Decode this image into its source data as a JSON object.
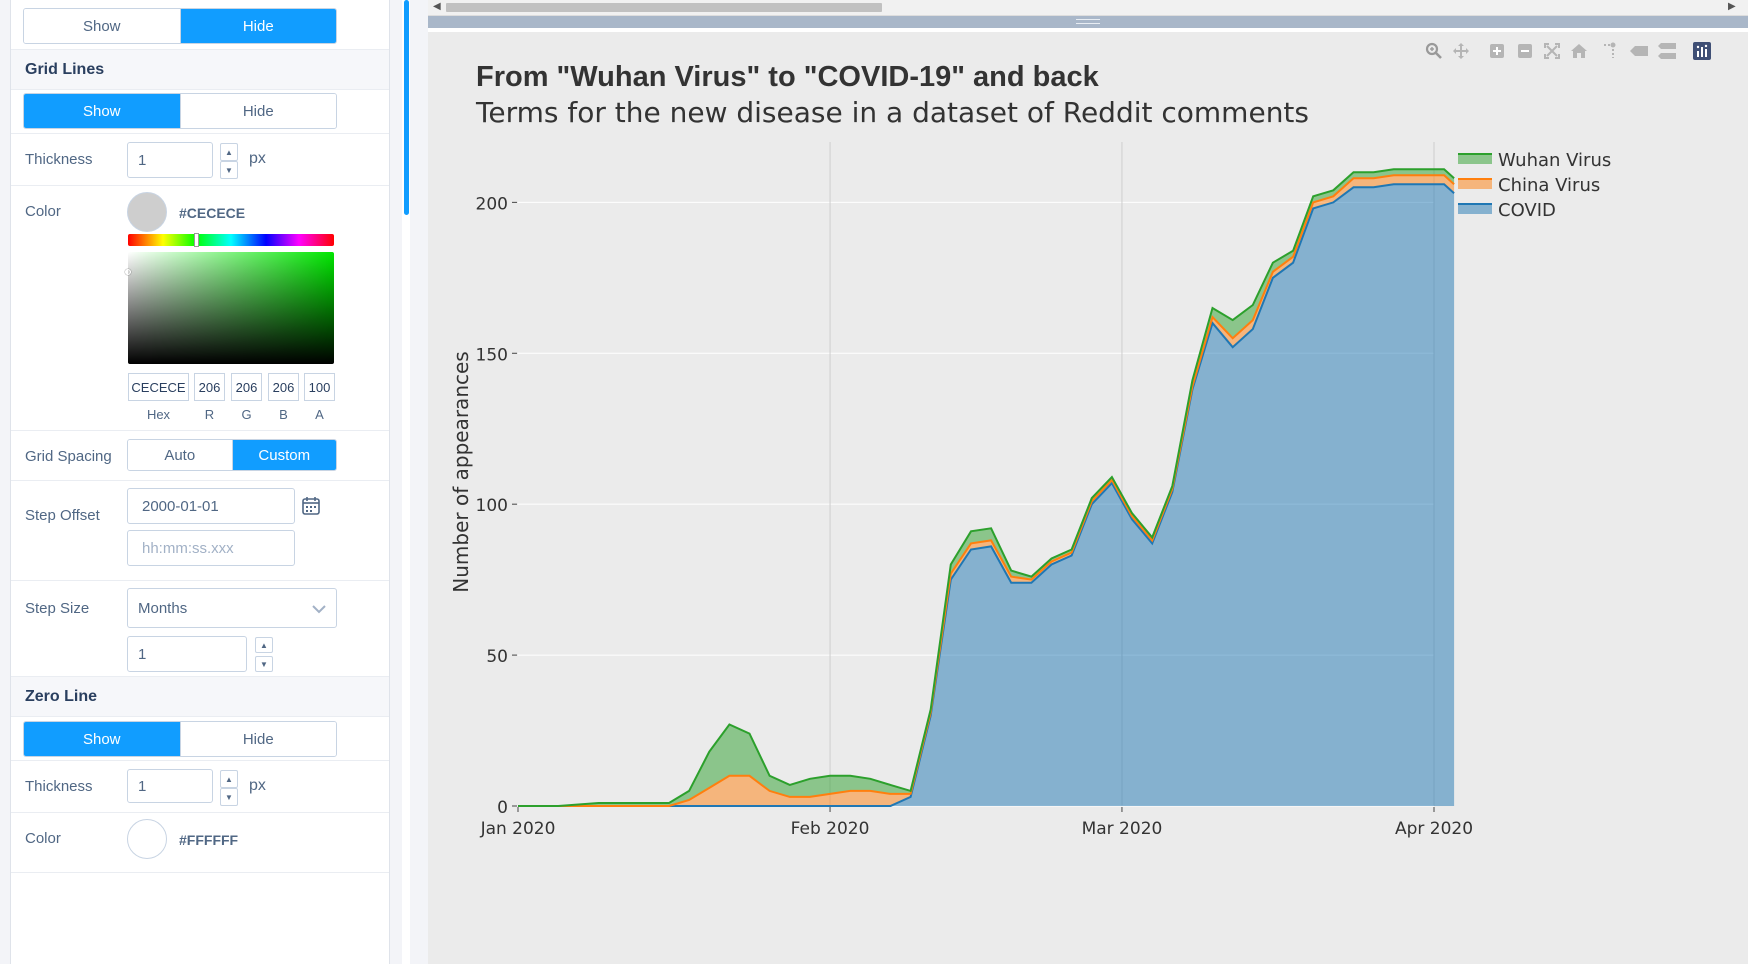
{
  "panel": {
    "top_toggle": {
      "options": [
        "Show",
        "Hide"
      ],
      "selected": 1
    },
    "grid_lines": {
      "title": "Grid Lines",
      "toggle": {
        "options": [
          "Show",
          "Hide"
        ],
        "selected": 0
      },
      "thickness_label": "Thickness",
      "thickness_value": "1",
      "thickness_unit": "px",
      "color_label": "Color",
      "color_hex_text": "#CECECE",
      "color_value": "#cecece",
      "picker": {
        "hex": "CECECE",
        "r": "206",
        "g": "206",
        "b": "206",
        "a": "100",
        "labels": [
          "Hex",
          "R",
          "G",
          "B",
          "A"
        ]
      },
      "grid_spacing_label": "Grid Spacing",
      "grid_spacing": {
        "options": [
          "Auto",
          "Custom"
        ],
        "selected": 1
      },
      "step_offset_label": "Step Offset",
      "step_offset_date": "2000-01-01",
      "step_offset_time_placeholder": "hh:mm:ss.xxx",
      "step_size_label": "Step Size",
      "step_size_unit": "Months",
      "step_size_value": "1"
    },
    "zero_line": {
      "title": "Zero Line",
      "toggle": {
        "options": [
          "Show",
          "Hide"
        ],
        "selected": 0
      },
      "thickness_label": "Thickness",
      "thickness_value": "1",
      "thickness_unit": "px",
      "color_label": "Color",
      "color_hex_text": "#FFFFFF",
      "color_value": "#ffffff"
    }
  },
  "modebar": [
    "zoom-icon",
    "pan-icon",
    "zoom-in-icon",
    "zoom-out-icon",
    "autoscale-icon",
    "reset-axes-icon",
    "spike-lines-icon",
    "hover-closest-icon",
    "hover-compare-icon",
    "plotly-logo-icon"
  ],
  "colors": {
    "accent": "#119dff",
    "plot_bg": "#ebebeb",
    "covid": "#1f77b4",
    "china": "#ff7f0e",
    "wuhan": "#2ca02c"
  },
  "chart_data": {
    "type": "area",
    "stacked": true,
    "title": "From \"Wuhan Virus\" to \"COVID-19\" and back",
    "subtitle": "Terms for the new disease in a dataset of Reddit comments",
    "xlabel": "",
    "ylabel": "Number of appearances",
    "x_range": [
      "2020-01-01",
      "2020-04-01"
    ],
    "ylim": [
      0,
      220
    ],
    "y_ticks": [
      0,
      50,
      100,
      150,
      200
    ],
    "x_ticks": [
      "Jan 2020",
      "Feb 2020",
      "Mar 2020",
      "Apr 2020"
    ],
    "grid": true,
    "legend_position": "top-right",
    "x": [
      "2020-01-01",
      "2020-01-05",
      "2020-01-09",
      "2020-01-13",
      "2020-01-16",
      "2020-01-18",
      "2020-01-20",
      "2020-01-22",
      "2020-01-24",
      "2020-01-26",
      "2020-01-28",
      "2020-01-30",
      "2020-02-01",
      "2020-02-03",
      "2020-02-05",
      "2020-02-07",
      "2020-02-09",
      "2020-02-11",
      "2020-02-13",
      "2020-02-15",
      "2020-02-17",
      "2020-02-19",
      "2020-02-21",
      "2020-02-23",
      "2020-02-25",
      "2020-02-27",
      "2020-02-29",
      "2020-03-02",
      "2020-03-04",
      "2020-03-06",
      "2020-03-08",
      "2020-03-10",
      "2020-03-12",
      "2020-03-14",
      "2020-03-16",
      "2020-03-18",
      "2020-03-20",
      "2020-03-22",
      "2020-03-24",
      "2020-03-26",
      "2020-03-28",
      "2020-03-30",
      "2020-04-01",
      "2020-04-02",
      "2020-04-03"
    ],
    "series": [
      {
        "name": "COVID",
        "values": [
          0,
          0,
          0,
          0,
          0,
          0,
          0,
          0,
          0,
          0,
          0,
          0,
          0,
          0,
          0,
          0,
          3,
          30,
          75,
          85,
          86,
          74,
          74,
          80,
          83,
          100,
          107,
          95,
          87,
          104,
          138,
          160,
          152,
          158,
          175,
          180,
          198,
          200,
          205,
          205,
          206,
          206,
          206,
          206,
          203
        ]
      },
      {
        "name": "China Virus",
        "values": [
          0,
          0,
          0,
          0,
          0,
          2,
          6,
          10,
          10,
          5,
          3,
          3,
          4,
          5,
          5,
          4,
          1,
          1,
          2,
          2,
          2,
          2,
          1,
          1,
          1,
          1,
          1,
          1,
          1,
          1,
          1,
          2,
          3,
          3,
          2,
          2,
          2,
          2,
          3,
          3,
          3,
          3,
          3,
          3,
          3
        ]
      },
      {
        "name": "Wuhan Virus",
        "values": [
          0,
          0,
          1,
          1,
          1,
          3,
          12,
          17,
          14,
          5,
          4,
          6,
          6,
          5,
          4,
          3,
          1,
          1,
          3,
          4,
          4,
          2,
          1,
          1,
          1,
          1,
          1,
          1,
          1,
          1,
          2,
          3,
          6,
          5,
          3,
          2,
          2,
          2,
          2,
          2,
          2,
          2,
          2,
          2,
          2
        ]
      }
    ]
  }
}
